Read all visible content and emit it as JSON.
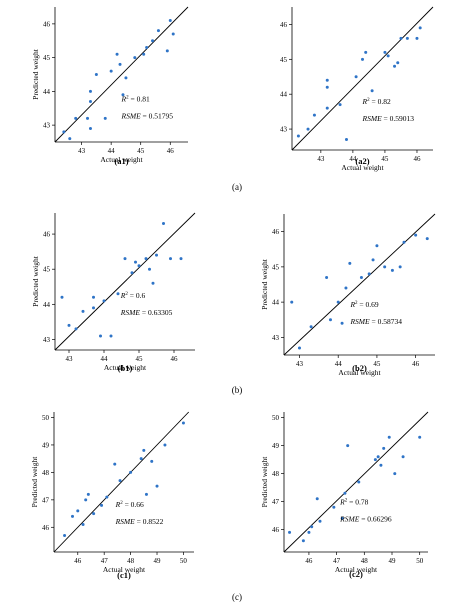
{
  "rows": [
    {
      "caption": "(a)"
    },
    {
      "caption": "(b)"
    },
    {
      "caption": "(c)"
    }
  ],
  "chart_data": [
    {
      "type": "scatter",
      "label": "a1",
      "caption": "(a1)",
      "xlabel": "Actual weight",
      "ylabel": "Predicted weight",
      "xlim": [
        42.1,
        46.6
      ],
      "ylim": [
        42.5,
        46.5
      ],
      "xticks": [
        43,
        44,
        45,
        46
      ],
      "yticks": [
        43,
        44,
        45,
        46
      ],
      "r2_text": "= 0.81",
      "rsme_text": "= 0.51795",
      "line": [
        [
          42.1,
          42.5
        ],
        [
          46.6,
          46.5
        ]
      ],
      "points": [
        [
          42.4,
          42.8
        ],
        [
          42.6,
          42.6
        ],
        [
          42.8,
          43.2
        ],
        [
          43.2,
          43.2
        ],
        [
          43.3,
          43.7
        ],
        [
          43.3,
          44.0
        ],
        [
          43.3,
          42.9
        ],
        [
          43.5,
          44.5
        ],
        [
          43.8,
          43.2
        ],
        [
          44.0,
          44.6
        ],
        [
          44.2,
          45.1
        ],
        [
          44.3,
          44.8
        ],
        [
          44.4,
          43.9
        ],
        [
          44.5,
          44.4
        ],
        [
          44.8,
          45.0
        ],
        [
          45.1,
          45.1
        ],
        [
          45.2,
          45.3
        ],
        [
          45.4,
          45.5
        ],
        [
          45.6,
          45.8
        ],
        [
          45.9,
          45.2
        ],
        [
          46.0,
          46.1
        ],
        [
          46.1,
          45.7
        ]
      ]
    },
    {
      "type": "scatter",
      "label": "a2",
      "caption": "(a2)",
      "xlabel": "Actual weight",
      "ylabel": "",
      "xlim": [
        42.1,
        46.5
      ],
      "ylim": [
        42.4,
        46.5
      ],
      "xticks": [
        43,
        44,
        45,
        46
      ],
      "yticks": [
        43,
        44,
        45,
        46
      ],
      "r2_text": "= 0.82",
      "rsme_text": "= 0.59013",
      "line": [
        [
          42.1,
          42.4
        ],
        [
          46.5,
          46.5
        ]
      ],
      "points": [
        [
          42.3,
          42.8
        ],
        [
          42.6,
          43.0
        ],
        [
          42.8,
          43.4
        ],
        [
          43.2,
          43.6
        ],
        [
          43.2,
          44.2
        ],
        [
          43.2,
          44.4
        ],
        [
          43.6,
          43.7
        ],
        [
          43.8,
          42.7
        ],
        [
          44.1,
          44.5
        ],
        [
          44.3,
          45.0
        ],
        [
          44.4,
          45.2
        ],
        [
          44.6,
          44.1
        ],
        [
          45.0,
          45.2
        ],
        [
          45.1,
          45.1
        ],
        [
          45.3,
          44.8
        ],
        [
          45.5,
          45.6
        ],
        [
          45.7,
          45.6
        ],
        [
          46.0,
          45.6
        ],
        [
          46.1,
          45.9
        ],
        [
          45.4,
          44.9
        ]
      ]
    },
    {
      "type": "scatter",
      "label": "b1",
      "caption": "(b1)",
      "xlabel": "Actual weight",
      "ylabel": "Predicted weight",
      "xlim": [
        42.6,
        46.6
      ],
      "ylim": [
        42.7,
        46.6
      ],
      "xticks": [
        43,
        44,
        45,
        46
      ],
      "yticks": [
        43,
        44,
        45,
        46
      ],
      "r2_text": "= 0.6",
      "rsme_text": "= 0.63305",
      "line": [
        [
          42.6,
          42.7
        ],
        [
          46.6,
          46.6
        ]
      ],
      "points": [
        [
          42.8,
          44.2
        ],
        [
          43.0,
          43.4
        ],
        [
          43.2,
          43.3
        ],
        [
          43.4,
          43.8
        ],
        [
          43.7,
          43.9
        ],
        [
          43.7,
          44.2
        ],
        [
          43.9,
          43.1
        ],
        [
          44.0,
          44.1
        ],
        [
          44.2,
          43.1
        ],
        [
          44.4,
          44.3
        ],
        [
          44.6,
          45.3
        ],
        [
          44.8,
          44.9
        ],
        [
          44.9,
          45.2
        ],
        [
          45.0,
          45.1
        ],
        [
          45.2,
          45.3
        ],
        [
          45.3,
          45.0
        ],
        [
          45.4,
          44.6
        ],
        [
          45.5,
          45.4
        ],
        [
          45.7,
          46.3
        ],
        [
          45.9,
          45.3
        ],
        [
          46.2,
          45.3
        ]
      ]
    },
    {
      "type": "scatter",
      "label": "b2",
      "caption": "(b2)",
      "xlabel": "Actual weight",
      "ylabel": "Predicted weight",
      "xlim": [
        42.6,
        46.5
      ],
      "ylim": [
        42.5,
        46.5
      ],
      "xticks": [
        43,
        44,
        45,
        46
      ],
      "yticks": [
        43,
        44,
        45,
        46
      ],
      "r2_text": "= 0.69",
      "rsme_text": "= 0.58734",
      "line": [
        [
          42.6,
          42.5
        ],
        [
          46.5,
          46.5
        ]
      ],
      "points": [
        [
          42.8,
          44.0
        ],
        [
          43.0,
          42.7
        ],
        [
          43.3,
          43.3
        ],
        [
          43.7,
          44.7
        ],
        [
          43.8,
          43.5
        ],
        [
          44.0,
          44.0
        ],
        [
          44.2,
          44.4
        ],
        [
          44.3,
          45.1
        ],
        [
          44.6,
          44.7
        ],
        [
          44.8,
          44.8
        ],
        [
          44.9,
          45.2
        ],
        [
          45.0,
          45.6
        ],
        [
          45.2,
          45.0
        ],
        [
          45.4,
          44.9
        ],
        [
          45.7,
          45.7
        ],
        [
          46.0,
          45.9
        ],
        [
          46.3,
          45.8
        ],
        [
          44.1,
          43.4
        ],
        [
          45.6,
          45.0
        ]
      ]
    },
    {
      "type": "scatter",
      "label": "c1",
      "caption": "(c1)",
      "xlabel": "Actual weight",
      "ylabel": "Predicted weight",
      "xlim": [
        45.1,
        50.4
      ],
      "ylim": [
        45.1,
        50.2
      ],
      "xticks": [
        46,
        47,
        48,
        49,
        50
      ],
      "yticks": [
        46,
        47,
        48,
        49,
        50
      ],
      "r2_text": "= 0.66",
      "rsme_text": "= 0.8522",
      "line": [
        [
          45.1,
          45.1
        ],
        [
          50.2,
          50.2
        ]
      ],
      "points": [
        [
          45.5,
          45.7
        ],
        [
          45.8,
          46.4
        ],
        [
          46.0,
          46.6
        ],
        [
          46.2,
          46.1
        ],
        [
          46.3,
          47.0
        ],
        [
          46.4,
          47.2
        ],
        [
          46.6,
          46.5
        ],
        [
          46.9,
          46.8
        ],
        [
          47.1,
          47.1
        ],
        [
          47.4,
          48.3
        ],
        [
          47.6,
          47.7
        ],
        [
          48.0,
          48.0
        ],
        [
          48.4,
          48.5
        ],
        [
          48.5,
          48.8
        ],
        [
          48.6,
          47.2
        ],
        [
          48.8,
          48.4
        ],
        [
          49.0,
          47.5
        ],
        [
          49.3,
          49.0
        ],
        [
          50.0,
          49.8
        ]
      ]
    },
    {
      "type": "scatter",
      "label": "c2",
      "caption": "(c2)",
      "xlabel": "Actual weight",
      "ylabel": "Predicted weight",
      "xlim": [
        45.1,
        50.3
      ],
      "ylim": [
        45.2,
        50.2
      ],
      "xticks": [
        46,
        47,
        48,
        49,
        50
      ],
      "yticks": [
        46,
        47,
        48,
        49,
        50
      ],
      "r2_text": "= 0.78",
      "rsme_text": "= 0.66296",
      "line": [
        [
          45.1,
          45.2
        ],
        [
          50.3,
          50.2
        ]
      ],
      "points": [
        [
          45.3,
          45.9
        ],
        [
          45.8,
          45.6
        ],
        [
          46.0,
          45.9
        ],
        [
          46.1,
          46.1
        ],
        [
          46.3,
          47.1
        ],
        [
          46.4,
          46.3
        ],
        [
          46.9,
          46.8
        ],
        [
          47.2,
          46.4
        ],
        [
          47.3,
          47.3
        ],
        [
          47.4,
          49.0
        ],
        [
          47.8,
          47.7
        ],
        [
          48.4,
          48.5
        ],
        [
          48.5,
          48.6
        ],
        [
          48.6,
          48.3
        ],
        [
          48.7,
          48.9
        ],
        [
          48.9,
          49.3
        ],
        [
          49.1,
          48.0
        ],
        [
          49.4,
          48.6
        ],
        [
          50.0,
          49.3
        ]
      ]
    }
  ]
}
